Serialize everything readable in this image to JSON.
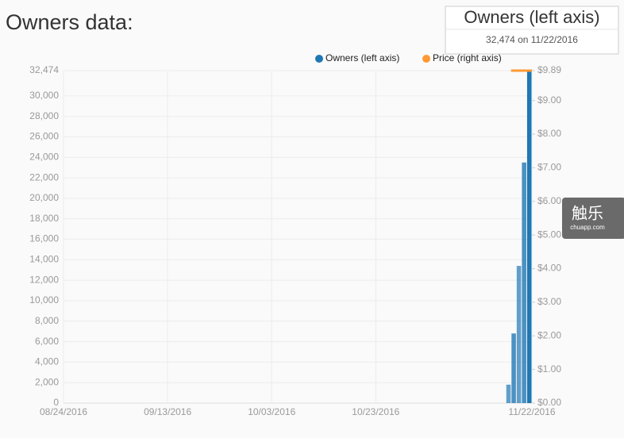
{
  "title": "Owners data:",
  "chart_data": {
    "type": "bar",
    "tooltip": {
      "title": "Owners (left axis)",
      "text": "32,474 on 11/22/2016"
    },
    "x": [
      "11/18/2016",
      "11/19/2016",
      "11/20/2016",
      "11/21/2016",
      "11/22/2016"
    ],
    "xlim": [
      "08/24/2016",
      "11/22/2016"
    ],
    "xticks": [
      "08/24/2016",
      "09/13/2016",
      "10/03/2016",
      "10/23/2016",
      "11/22/2016"
    ],
    "series": [
      {
        "name": "Owners (left axis)",
        "color": "#1f77b4",
        "values": [
          1800,
          6800,
          13400,
          23500,
          32474
        ]
      },
      {
        "name": "Price (right axis)",
        "color": "#ff9933",
        "axis": "y2",
        "values": [
          9.89,
          9.89,
          9.89,
          9.89,
          9.89
        ]
      }
    ],
    "ylim": [
      0,
      32474
    ],
    "yticks": [
      0,
      {
        "value": 2000,
        "label": "2,000"
      },
      {
        "value": 4000,
        "label": "4,000"
      },
      {
        "value": 6000,
        "label": "6,000"
      },
      {
        "value": 8000,
        "label": "8,000"
      },
      {
        "value": 10000,
        "label": "10,000"
      },
      {
        "value": 12000,
        "label": "12,000"
      },
      {
        "value": 14000,
        "label": "14,000"
      },
      {
        "value": 16000,
        "label": "16,000"
      },
      {
        "value": 18000,
        "label": "18,000"
      },
      {
        "value": 20000,
        "label": "20,000"
      },
      {
        "value": 22000,
        "label": "22,000"
      },
      {
        "value": 24000,
        "label": "24,000"
      },
      {
        "value": 26000,
        "label": "26,000"
      },
      {
        "value": 28000,
        "label": "28,000"
      },
      {
        "value": 30000,
        "label": "30,000"
      },
      {
        "value": 32474,
        "label": "32,474"
      }
    ],
    "y2lim": [
      0,
      9.89
    ],
    "y2ticks": [
      {
        "value": 0,
        "label": "$0.00"
      },
      {
        "value": 1,
        "label": "$1.00"
      },
      {
        "value": 2,
        "label": "$2.00"
      },
      {
        "value": 3,
        "label": "$3.00"
      },
      {
        "value": 4,
        "label": "$4.00"
      },
      {
        "value": 5,
        "label": "$5.00"
      },
      {
        "value": 6,
        "label": "$6.00"
      },
      {
        "value": 7,
        "label": "$7.00"
      },
      {
        "value": 8,
        "label": "$8.00"
      },
      {
        "value": 9,
        "label": "$9.00"
      },
      {
        "value": 9.89,
        "label": "$9.89"
      }
    ],
    "grid": true
  },
  "watermark": {
    "title": "触乐",
    "subtitle": "chuapp.com"
  }
}
